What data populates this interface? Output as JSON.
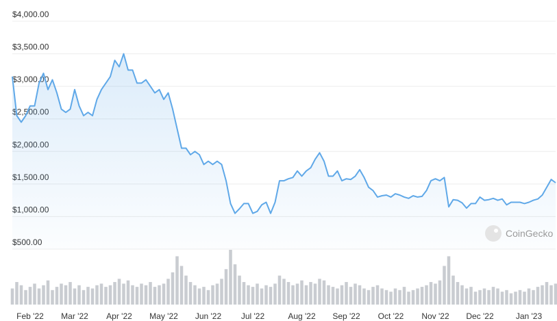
{
  "chart_data": {
    "type": "line",
    "categories": [
      null,
      null,
      null,
      null,
      "Feb '22",
      null,
      null,
      null,
      null,
      null,
      null,
      null,
      null,
      null,
      "Mar '22",
      null,
      null,
      null,
      null,
      null,
      null,
      null,
      null,
      null,
      "Apr '22",
      null,
      null,
      null,
      null,
      null,
      null,
      null,
      null,
      null,
      "May '22",
      null,
      null,
      null,
      null,
      null,
      null,
      null,
      null,
      null,
      "Jun '22",
      null,
      null,
      null,
      null,
      null,
      null,
      null,
      null,
      null,
      "Jul '22",
      null,
      null,
      null,
      null,
      null,
      null,
      null,
      null,
      null,
      null,
      "Aug '22",
      null,
      null,
      null,
      null,
      null,
      null,
      null,
      null,
      null,
      "Sep '22",
      null,
      null,
      null,
      null,
      null,
      null,
      null,
      null,
      null,
      "Oct '22",
      null,
      null,
      null,
      null,
      null,
      null,
      null,
      null,
      null,
      "Nov '22",
      null,
      null,
      null,
      null,
      null,
      null,
      null,
      null,
      null,
      "Dec '22",
      null,
      null,
      null,
      null,
      null,
      null,
      null,
      null,
      null,
      null,
      "Jan '23",
      null,
      null,
      null,
      null,
      null,
      null
    ],
    "values": [
      3150,
      2550,
      2450,
      2550,
      2700,
      2700,
      3050,
      3200,
      2950,
      3100,
      2900,
      2650,
      2600,
      2650,
      2950,
      2700,
      2550,
      2600,
      2550,
      2800,
      2950,
      3050,
      3150,
      3400,
      3300,
      3500,
      3250,
      3250,
      3050,
      3050,
      3100,
      3000,
      2900,
      2950,
      2800,
      2900,
      2650,
      2350,
      2050,
      2050,
      1950,
      2000,
      1950,
      1800,
      1850,
      1800,
      1850,
      1800,
      1550,
      1200,
      1050,
      1120,
      1200,
      1200,
      1050,
      1080,
      1180,
      1220,
      1050,
      1220,
      1550,
      1550,
      1580,
      1600,
      1700,
      1620,
      1700,
      1750,
      1880,
      1980,
      1850,
      1620,
      1620,
      1700,
      1550,
      1580,
      1570,
      1620,
      1720,
      1600,
      1450,
      1400,
      1300,
      1320,
      1330,
      1300,
      1350,
      1330,
      1300,
      1280,
      1320,
      1300,
      1310,
      1400,
      1550,
      1580,
      1550,
      1600,
      1150,
      1260,
      1250,
      1210,
      1130,
      1200,
      1200,
      1300,
      1250,
      1260,
      1280,
      1250,
      1270,
      1180,
      1220,
      1220,
      1220,
      1200,
      1220,
      1250,
      1270,
      1330,
      1450,
      1570,
      1520
    ],
    "volume": [
      10,
      14,
      12,
      9,
      11,
      13,
      10,
      12,
      15,
      9,
      11,
      13,
      12,
      14,
      10,
      12,
      9,
      11,
      10,
      12,
      13,
      11,
      12,
      14,
      16,
      13,
      15,
      12,
      11,
      13,
      12,
      14,
      11,
      12,
      13,
      16,
      20,
      30,
      24,
      18,
      14,
      12,
      10,
      11,
      9,
      12,
      13,
      16,
      22,
      34,
      25,
      18,
      14,
      12,
      11,
      13,
      10,
      12,
      11,
      13,
      18,
      16,
      14,
      12,
      13,
      15,
      12,
      14,
      13,
      16,
      15,
      12,
      11,
      10,
      12,
      14,
      11,
      13,
      12,
      10,
      9,
      11,
      12,
      10,
      9,
      8,
      10,
      9,
      11,
      8,
      9,
      10,
      11,
      12,
      14,
      13,
      15,
      24,
      30,
      18,
      14,
      12,
      10,
      11,
      8,
      9,
      10,
      9,
      11,
      10,
      8,
      9,
      7,
      8,
      9,
      8,
      10,
      9,
      11,
      12,
      14,
      12,
      13
    ],
    "color": "#5fa8e8",
    "volume_color": "#c9ccd1",
    "ylim": [
      500,
      4000
    ],
    "yticks": [
      {
        "value": 500,
        "label": "$500.00"
      },
      {
        "value": 1000,
        "label": "$1,000.00"
      },
      {
        "value": 1500,
        "label": "$1,500.00"
      },
      {
        "value": 2000,
        "label": "$2,000.00"
      },
      {
        "value": 2500,
        "label": "$2,500.00"
      },
      {
        "value": 3000,
        "label": "$3,000.00"
      },
      {
        "value": 3500,
        "label": "$3,500.00"
      },
      {
        "value": 4000,
        "label": "$4,000.00"
      }
    ],
    "grid": true,
    "area": true,
    "watermark": "CoinGecko"
  }
}
